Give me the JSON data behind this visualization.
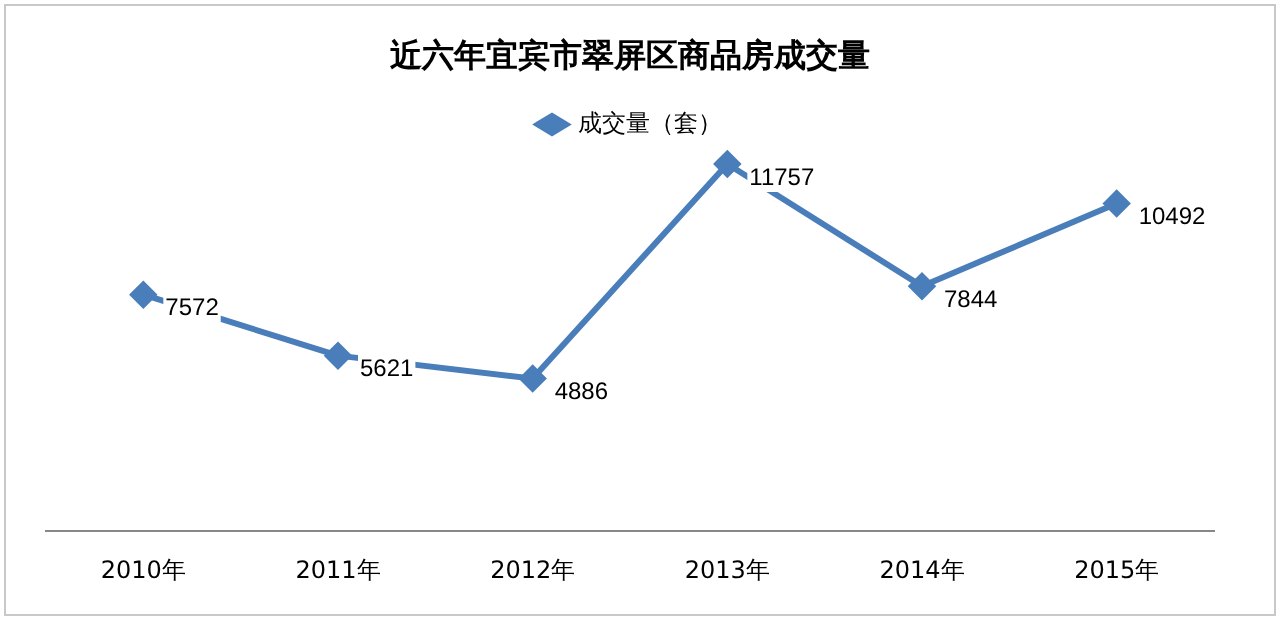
{
  "chart_data": {
    "type": "line",
    "title": "近六年宜宾市翠屏区商品房成交量",
    "categories": [
      "2010年",
      "2011年",
      "2012年",
      "2013年",
      "2014年",
      "2015年"
    ],
    "series": [
      {
        "name": "成交量（套）",
        "color": "#4a7ebb",
        "values": [
          7572,
          5621,
          4886,
          11757,
          7844,
          10492
        ]
      }
    ],
    "tick_labels": "x",
    "legend": "top",
    "marker": "diamond",
    "data_labels": true,
    "grid": false
  }
}
